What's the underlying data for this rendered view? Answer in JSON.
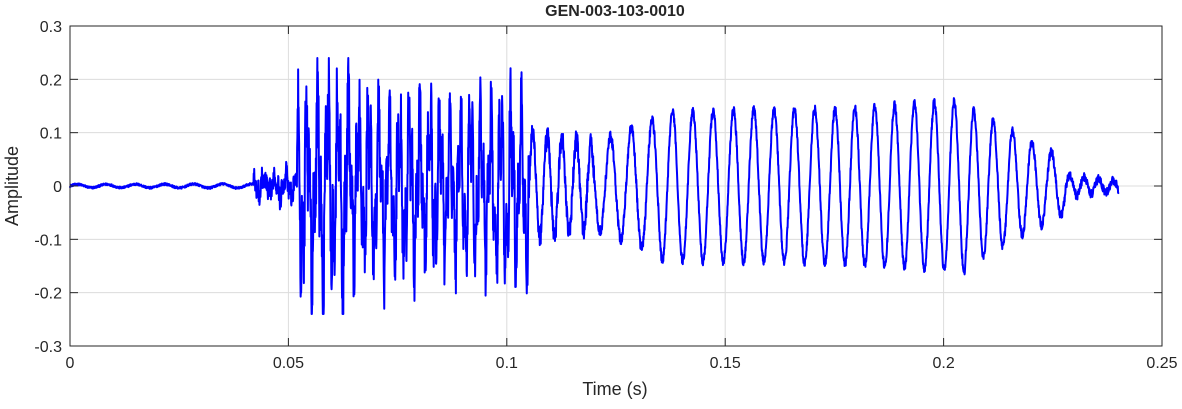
{
  "chart_data": {
    "type": "line",
    "title": "GEN-003-103-0010",
    "xlabel": "Time (s)",
    "ylabel": "Amplitude",
    "xlim": [
      0,
      0.25
    ],
    "ylim": [
      -0.3,
      0.3
    ],
    "xticks": [
      0,
      0.05,
      0.1,
      0.15,
      0.2,
      0.25
    ],
    "xtick_labels": [
      "0",
      "0.05",
      "0.1",
      "0.15",
      "0.2",
      "0.25"
    ],
    "yticks": [
      -0.3,
      -0.2,
      -0.1,
      0,
      0.1,
      0.2,
      0.3
    ],
    "ytick_labels": [
      "-0.3",
      "-0.2",
      "-0.1",
      "0",
      "0.1",
      "0.2",
      "0.3"
    ],
    "grid": true,
    "line_color": "#0000ff",
    "series": [
      {
        "x_start": 0,
        "x_end": 0.24,
        "segments": [
          {
            "t0": 0.0,
            "t1": 0.042,
            "osc_hz": 150,
            "amp": [
              0.003,
              0.004
            ],
            "jitter": 0.002
          },
          {
            "t0": 0.042,
            "t1": 0.052,
            "osc_hz": 400,
            "amp": [
              0.02,
              0.03
            ],
            "jitter": 0.02
          },
          {
            "t0": 0.052,
            "t1": 0.064,
            "osc_hz": 420,
            "amp": [
              0.2,
              0.24
            ],
            "jitter": 0.08
          },
          {
            "t0": 0.064,
            "t1": 0.085,
            "osc_hz": 430,
            "amp": [
              0.18,
              0.17
            ],
            "jitter": 0.06
          },
          {
            "t0": 0.085,
            "t1": 0.105,
            "osc_hz": 430,
            "amp": [
              0.16,
              0.2
            ],
            "jitter": 0.05
          },
          {
            "t0": 0.105,
            "t1": 0.12,
            "osc_hz": 300,
            "amp": [
              0.1,
              0.08
            ],
            "jitter": 0.02
          },
          {
            "t0": 0.12,
            "t1": 0.135,
            "osc_hz": 210,
            "amp": [
              0.08,
              0.13
            ],
            "jitter": 0.01
          },
          {
            "t0": 0.135,
            "t1": 0.175,
            "osc_hz": 215,
            "amp": [
              0.14,
              0.145
            ],
            "jitter": 0.008
          },
          {
            "t0": 0.175,
            "t1": 0.205,
            "osc_hz": 220,
            "amp": [
              0.145,
              0.16
            ],
            "jitter": 0.008
          },
          {
            "t0": 0.205,
            "t1": 0.228,
            "osc_hz": 225,
            "amp": [
              0.15,
              0.05
            ],
            "jitter": 0.008
          },
          {
            "t0": 0.228,
            "t1": 0.24,
            "osc_hz": 300,
            "amp": [
              0.02,
              0.01
            ],
            "jitter": 0.008
          }
        ]
      }
    ]
  }
}
